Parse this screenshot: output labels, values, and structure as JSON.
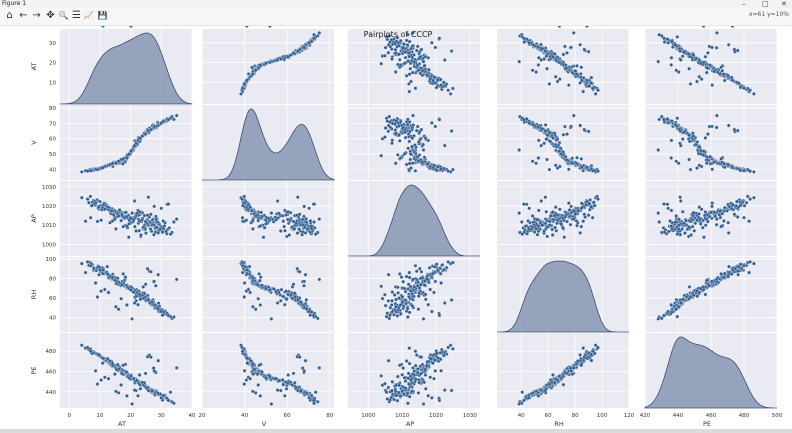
{
  "window": {
    "title": "Figure 1",
    "controls": [
      "–",
      "□",
      "✕"
    ]
  },
  "toolbar": {
    "buttons": [
      {
        "name": "home-icon",
        "glyph": "⌂"
      },
      {
        "name": "back-icon",
        "glyph": "←"
      },
      {
        "name": "forward-icon",
        "glyph": "→"
      },
      {
        "name": "pan-icon",
        "glyph": "✥"
      },
      {
        "name": "zoom-icon",
        "glyph": "🔍"
      },
      {
        "name": "subplots-icon",
        "glyph": "☰"
      },
      {
        "name": "axes-edit-icon",
        "glyph": "📈"
      },
      {
        "name": "save-icon",
        "glyph": "💾"
      }
    ],
    "coords": "x=61 y=10%"
  },
  "chart_data": {
    "type": "pairplot",
    "title": "Pairplots of CCCP",
    "variables": [
      "AT",
      "V",
      "AP",
      "RH",
      "PE"
    ],
    "diag_kind": "kde",
    "grid": true,
    "background_color": "#eaeaf2",
    "point_color": "#2f5d8f",
    "kde_fill_color": "#8797b4",
    "axes": {
      "AT": {
        "lim": [
          -3,
          40
        ],
        "ticks": [
          0,
          10,
          20,
          30,
          40
        ]
      },
      "V": {
        "lim": [
          20,
          82
        ],
        "ticks": [
          20,
          40,
          60,
          80
        ]
      },
      "AP": {
        "lim": [
          994,
          1033
        ],
        "ticks": [
          1000,
          1010,
          1020,
          1030
        ]
      },
      "RH": {
        "lim": [
          22,
          120
        ],
        "ticks": [
          20,
          40,
          60,
          80,
          100,
          120
        ]
      },
      "PE": {
        "lim": [
          420,
          500
        ],
        "ticks": [
          420,
          440,
          460,
          480,
          500
        ]
      }
    },
    "row_axes": {
      "AT": {
        "lim": [
          -1,
          37
        ],
        "ticks": [
          10,
          20,
          30
        ]
      },
      "V": {
        "lim": [
          33,
          82
        ],
        "ticks": [
          40,
          50,
          60,
          70,
          80
        ]
      },
      "AP": {
        "lim": [
          994,
          1033
        ],
        "ticks": [
          1000,
          1010,
          1020,
          1030
        ]
      },
      "RH": {
        "lim": [
          25,
          102
        ],
        "ticks": [
          40,
          60,
          80,
          100
        ]
      },
      "PE": {
        "lim": [
          424,
          498
        ],
        "ticks": [
          440,
          460,
          480
        ]
      }
    },
    "n_points": 200,
    "points": {
      "AT": [
        14.2,
        29.1,
        24.1,
        7.9,
        31.8,
        18.2,
        12.4,
        21.4,
        17.5,
        5.3,
        26.8,
        11.1,
        27.3,
        22.5,
        9.7,
        16.0,
        25.6,
        30.3,
        4.1,
        19.8,
        13.6,
        23.3,
        28.4,
        8.5,
        15.9,
        32.6,
        20.9,
        10.2,
        25.0,
        17.1,
        6.4,
        27.9,
        22.0,
        12.9,
        29.7,
        16.8,
        24.7,
        9.1,
        20.3,
        33.5,
        14.8,
        26.2,
        7.2,
        18.9,
        23.9,
        11.7,
        28.8,
        21.7,
        15.3,
        30.9,
        19.4,
        8.8,
        25.3,
        13.2,
        27.1,
        22.8,
        10.7,
        31.2,
        17.9,
        24.4,
        6.9,
        20.6,
        26.5,
        14.5,
        29.4,
        12.0,
        23.6,
        18.6,
        28.1,
        9.4,
        21.2,
        16.4,
        34.1,
        25.9,
        11.4,
        19.1,
        27.6,
        13.9,
        22.3,
        30.6,
        8.2,
        24.0,
        17.3,
        26.0,
        15.6,
        28.6,
        10.5,
        20.0,
        32.0,
        23.1,
        12.7,
        25.4,
        18.0,
        29.9,
        14.0,
        21.9,
        7.6,
        27.4,
        16.6,
        24.8,
        11.9,
        19.6,
        31.5,
        22.7,
        9.9,
        26.7,
        15.0,
        28.3,
        20.8,
        13.4,
        30.1,
        17.7,
        23.4,
        6.0,
        25.1,
        18.4,
        27.8,
        12.2,
        21.5,
        29.2,
        14.7,
        24.6,
        10.0,
        19.3,
        26.3,
        16.2,
        31.0,
        22.1,
        8.0,
        28.0,
        17.0,
        23.7,
        13.0,
        25.7,
        20.4,
        11.2,
        29.6,
        15.4,
        27.2,
        18.7,
        24.2,
        9.6,
        21.0,
        30.4,
        14.3,
        26.9,
        12.5,
        22.6,
        33.0,
        17.2,
        25.2,
        7.4,
        19.9,
        28.5,
        15.8,
        23.0,
        10.9,
        27.0,
        20.2,
        13.8,
        30.7,
        24.5,
        16.9,
        8.6,
        26.1,
        21.8,
        11.6,
        28.9,
        18.3,
        23.8,
        14.9,
        31.9,
        19.0,
        25.5,
        9.2,
        22.4,
        27.5,
        16.1,
        29.0,
        12.8,
        24.9,
        20.5,
        35.0,
        15.2,
        26.6,
        10.4,
        21.3,
        28.2,
        17.6,
        23.2,
        13.3,
        30.0,
        19.5,
        25.8,
        7.0,
        22.9,
        18.8,
        27.7,
        14.1,
        32.3,
        20.1,
        11.0
      ],
      "V": [
        41.9,
        68.7,
        62.5,
        40.2,
        71.4,
        44.8,
        42.3,
        58.6,
        43.5,
        39.1,
        66.3,
        41.2,
        69.0,
        60.7,
        40.8,
        45.0,
        63.9,
        70.2,
        38.3,
        49.6,
        43.3,
        59.9,
        67.8,
        39.9,
        44.1,
        73.0,
        52.4,
        40.5,
        64.8,
        45.7,
        39.4,
        68.1,
        57.3,
        42.5,
        69.7,
        46.3,
        63.2,
        40.0,
        51.7,
        74.4,
        44.4,
        66.9,
        39.6,
        48.5,
        61.8,
        41.9,
        70.6,
        55.2,
        43.8,
        71.9,
        48.9,
        40.4,
        65.1,
        42.9,
        68.4,
        59.0,
        40.7,
        71.0,
        47.2,
        62.9,
        39.8,
        53.0,
        65.6,
        44.6,
        69.3,
        42.1,
        61.2,
        46.6,
        67.5,
        40.3,
        54.4,
        44.2,
        72.6,
        64.4,
        41.5,
        48.0,
        67.0,
        43.2,
        56.8,
        70.9,
        39.7,
        62.1,
        45.3,
        64.0,
        44.9,
        68.9,
        41.0,
        50.8,
        72.2,
        60.1,
        42.8,
        65.8,
        46.9,
        70.0,
        43.6,
        57.9,
        39.3,
        66.6,
        45.5,
        63.4,
        42.0,
        50.1,
        71.7,
        59.5,
        40.9,
        66.1,
        43.9,
        67.2,
        53.7,
        43.0,
        70.4,
        46.0,
        61.0,
        38.8,
        64.6,
        47.8,
        68.5,
        42.4,
        55.8,
        69.9,
        44.3,
        63.7,
        40.6,
        49.2,
        65.4,
        45.1,
        71.2,
        56.1,
        39.5,
        67.7,
        45.6,
        61.5,
        42.7,
        64.9,
        52.1,
        41.7,
        69.5,
        44.7,
        66.8,
        48.2,
        62.3,
        40.1,
        54.8,
        70.8,
        43.7,
        66.0,
        42.2,
        60.3,
        73.4,
        46.1,
        64.2,
        39.2,
        50.3,
        68.2,
        44.5,
        58.2,
        41.3,
        66.4,
        51.3,
        43.4,
        71.5,
        63.6,
        46.4,
        40.0,
        65.3,
        57.0,
        41.8,
        69.1,
        47.6,
        61.6,
        44.0,
        72.9,
        49.4,
        64.7,
        39.8,
        58.9,
        67.3,
        45.2,
        68.6,
        42.6,
        63.0,
        52.6,
        75.1,
        43.9,
        65.9,
        40.8,
        55.5,
        67.9,
        46.8,
        59.7,
        43.1,
        70.3,
        50.0,
        65.0,
        39.0,
        60.5,
        47.4,
        68.0,
        43.8,
        72.4,
        51.9,
        41.1
      ],
      "AP": [
        1017.6,
        1010.7,
        1008.1,
        1022.8,
        1005.6,
        1014.3,
        1019.9,
        1009.3,
        1016.5,
        1012.1,
        1006.9,
        1021.1,
        1013.2,
        1011.0,
        1018.4,
        1015.7,
        1009.8,
        1007.4,
        1024.3,
        1012.8,
        1016.0,
        1004.2,
        1011.6,
        1020.5,
        1017.1,
        1008.6,
        1013.9,
        1019.2,
        1005.9,
        1014.8,
        1021.7,
        1010.3,
        1015.2,
        1018.9,
        1009.0,
        1016.9,
        1007.8,
        1023.1,
        1012.4,
        1006.2,
        1014.0,
        1011.9,
        1020.1,
        1010.0,
        1013.5,
        1019.5,
        1008.4,
        1015.9,
        1016.3,
        1009.5,
        1003.8,
        1022.0,
        1010.9,
        1017.4,
        1012.6,
        1007.1,
        1018.1,
        1011.3,
        1014.6,
        1009.2,
        1025.0,
        1013.1,
        1008.0,
        1015.4,
        1010.5,
        1020.8,
        1012.0,
        1016.7,
        1006.5,
        1019.0,
        1014.1,
        1017.9,
        1011.7,
        1009.7,
        1021.4,
        1013.7,
        1005.1,
        1018.6,
        1015.0,
        1012.2,
        1022.5,
        1008.8,
        1016.1,
        1010.2,
        1014.4,
        1013.3,
        1020.3,
        1011.1,
        1007.6,
        1015.6,
        1018.2,
        1012.9,
        1013.6,
        1009.4,
        1017.0,
        1014.9,
        1021.9,
        1011.4,
        1016.4,
        1008.2,
        1019.3,
        1012.5,
        1006.8,
        1015.3,
        1020.0,
        1010.6,
        1017.2,
        1013.0,
        1011.8,
        1018.7,
        1008.9,
        1014.2,
        1004.9,
        1023.6,
        1012.3,
        1016.6,
        1009.9,
        1019.7,
        1013.8,
        1007.2,
        1017.8,
        1010.1,
        1022.3,
        1015.1,
        1011.5,
        1014.7,
        1009.6,
        1016.2,
        1021.2,
        1008.5,
        1015.8,
        1012.7,
        1018.0,
        1010.4,
        1013.4,
        1020.6,
        1007.9,
        1016.8,
        1011.2,
        1014.5,
        1009.1,
        1019.6,
        1012.9,
        1006.4,
        1017.3,
        1010.8,
        1018.5,
        1013.0,
        1005.4,
        1015.5,
        1011.0,
        1020.2,
        1014.0,
        1009.0,
        1016.0,
        1012.1,
        1019.1,
        1010.0,
        1013.6,
        1017.5,
        1008.3,
        1015.0,
        1012.4,
        1021.5,
        1014.3,
        1007.0,
        1018.3,
        1011.6,
        1009.8,
        1016.5,
        1013.1,
        1020.9,
        1008.7,
        1015.2,
        1012.0,
        1017.7,
        1010.3,
        1014.8,
        1006.0,
        1019.4,
        1011.9,
        1016.3,
        1013.2,
        1008.1,
        1015.7,
        1012.6,
        1022.6,
        1014.6,
        1009.3,
        1017.0,
        1011.3,
        1018.8,
        1010.7,
        1024.6,
        1013.9,
        1016.9,
        1009.5,
        1019.8,
        1012.2,
        1021.0
      ],
      "RH": [
        84.2,
        54.6,
        71.3,
        88.5,
        44.3,
        78.9,
        92.1,
        60.7,
        76.4,
        86.0,
        52.8,
        90.3,
        58.1,
        66.5,
        83.7,
        73.9,
        62.4,
        47.9,
        95.2,
        69.0,
        81.6,
        59.3,
        50.6,
        89.8,
        77.2,
        41.5,
        65.8,
        87.0,
        56.9,
        75.0,
        93.4,
        49.3,
        68.4,
        80.5,
        45.8,
        72.6,
        63.0,
        91.1,
        67.2,
        39.0,
        79.7,
        55.4,
        94.0,
        70.1,
        61.5,
        85.3,
        48.6,
        64.3,
        74.8,
        43.1,
        71.9,
        88.0,
        57.7,
        82.9,
        53.2,
        66.0,
        90.9,
        46.5,
        77.8,
        60.0,
        96.3,
        69.6,
        54.0,
        80.0,
        51.4,
        86.6,
        63.7,
        73.4,
        49.9,
        92.7,
        67.9,
        75.9,
        40.4,
        58.8,
        84.9,
        70.7,
        52.1,
        81.1,
        62.9,
        45.1,
        89.3,
        65.1,
        76.8,
        57.2,
        78.3,
        50.0,
        87.8,
        68.8,
        42.7,
        64.6,
        83.0,
        59.9,
        72.2,
        47.2,
        79.2,
        61.8,
        93.9,
        55.9,
        74.3,
        58.4,
        85.8,
        71.6,
        44.9,
        66.9,
        91.6,
        56.3,
        80.8,
        51.9,
        69.3,
        82.2,
        48.0,
        75.5,
        63.3,
        97.0,
        60.4,
        73.0,
        53.6,
        86.3,
        67.5,
        46.2,
        78.6,
        61.1,
        89.0,
        70.4,
        55.0,
        76.0,
        43.8,
        65.4,
        90.5,
        52.4,
        74.6,
        62.0,
        83.4,
        57.4,
        68.1,
        88.2,
        47.5,
        77.5,
        54.3,
        72.9,
        59.6,
        91.9,
        66.2,
        42.2,
        79.5,
        56.6,
        84.4,
        63.9,
        40.8,
        73.6,
        58.0,
        94.6,
        69.9,
        50.3,
        80.2,
        61.6,
        85.0,
        55.7,
        71.1,
        82.5,
        45.5,
        64.8,
        59.1,
        75.3,
        87.4,
        57.0,
        68.6,
        49.0,
        81.4,
        62.7,
        78.0,
        44.0,
        70.9,
        90.0,
        60.9,
        53.0,
        76.6,
        48.4,
        83.8,
        65.6,
        74.0,
        38.5,
        79.0,
        51.0,
        86.8,
        67.0,
        54.8,
        72.4,
        84.6,
        58.6,
        81.9,
        45.9,
        69.7,
        57.9,
        93.0,
        63.5,
        52.7,
        77.0,
        81.0,
        41.9,
        68.3,
        88.8
      ],
      "PE": [
        467.5,
        438.2,
        447.0,
        479.6,
        433.0,
        458.3,
        470.9,
        448.8,
        459.7,
        483.1,
        439.7,
        472.8,
        439.0,
        450.5,
        476.4,
        461.9,
        443.8,
        436.1,
        486.0,
        455.1,
        466.4,
        446.5,
        440.6,
        478.0,
        461.0,
        431.2,
        452.0,
        474.9,
        444.2,
        458.8,
        481.5,
        436.9,
        451.3,
        468.6,
        437.4,
        461.4,
        445.6,
        477.2,
        454.6,
        430.1,
        465.7,
        442.2,
        480.3,
        456.8,
        447.8,
        471.5,
        438.6,
        452.7,
        463.9,
        434.8,
        455.7,
        477.6,
        443.3,
        468.1,
        439.4,
        449.9,
        473.6,
        436.5,
        458.0,
        446.0,
        482.3,
        453.6,
        442.5,
        465.1,
        437.8,
        470.3,
        448.3,
        459.2,
        440.1,
        476.0,
        452.3,
        464.5,
        428.6,
        443.0,
        472.1,
        457.5,
        441.4,
        468.9,
        450.9,
        435.2,
        478.7,
        447.4,
        461.7,
        442.8,
        462.3,
        440.3,
        474.0,
        454.0,
        432.4,
        448.5,
        470.6,
        444.6,
        460.4,
        437.0,
        465.4,
        451.7,
        479.2,
        439.9,
        462.9,
        446.2,
        472.4,
        455.3,
        434.4,
        449.6,
        475.4,
        441.8,
        464.1,
        440.7,
        453.3,
        469.4,
        436.7,
        457.1,
        448.0,
        483.7,
        444.9,
        460.0,
        440.0,
        471.2,
        450.2,
        437.2,
        465.9,
        445.3,
        475.7,
        456.2,
        441.0,
        462.6,
        435.6,
        451.0,
        478.4,
        439.2,
        458.5,
        449.2,
        470.0,
        444.4,
        453.9,
        473.2,
        438.0,
        462.0,
        441.6,
        459.4,
        446.8,
        476.8,
        453.0,
        431.8,
        465.6,
        442.0,
        472.6,
        448.6,
        439.6,
        457.8,
        443.6,
        477.9,
        452.5,
        439.3,
        466.8,
        447.1,
        468.3,
        440.8,
        456.5,
        469.7,
        436.3,
        449.0,
        446.7,
        460.7,
        476.2,
        441.2,
        454.3,
        438.4,
        467.0,
        449.4,
        457.4,
        433.6,
        455.0,
        474.5,
        447.6,
        436.0,
        463.4,
        438.9,
        470.7,
        452.9,
        458.1,
        428.0,
        463.6,
        440.4,
        474.2,
        451.5,
        441.7,
        459.0,
        466.1,
        442.9,
        470.4,
        434.0,
        453.8,
        441.3,
        480.0,
        456.6,
        435.9,
        460.6,
        467.8,
        431.5,
        455.5,
        473.0
      ]
    }
  }
}
